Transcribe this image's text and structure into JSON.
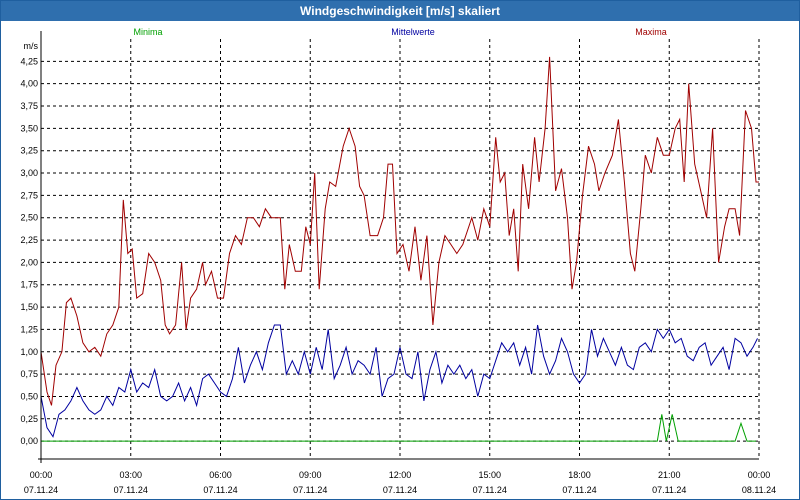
{
  "window": {
    "title": "Windgeschwindigkeit [m/s] skaliert"
  },
  "chart_data": {
    "type": "line",
    "title": "Windgeschwindigkeit [m/s] skaliert",
    "ylabel": "m/s",
    "ylim": [
      -0.2,
      4.5
    ],
    "xlim": [
      0,
      24
    ],
    "yticks": [
      0,
      0.25,
      0.5,
      0.75,
      1,
      1.25,
      1.5,
      1.75,
      2,
      2.25,
      2.5,
      2.75,
      3,
      3.25,
      3.5,
      3.75,
      4,
      4.25
    ],
    "ytick_labels": [
      "0,00",
      "0,25",
      "0,50",
      "0,75",
      "1,00",
      "1,25",
      "1,50",
      "1,75",
      "2,00",
      "2,25",
      "2,50",
      "2,75",
      "3,00",
      "3,25",
      "3,50",
      "3,75",
      "4,00",
      "4,25"
    ],
    "xticks": [
      {
        "h": 0,
        "time": "00:00",
        "date": "07.11.24"
      },
      {
        "h": 3,
        "time": "03:00",
        "date": "07.11.24"
      },
      {
        "h": 6,
        "time": "06:00",
        "date": "07.11.24"
      },
      {
        "h": 9,
        "time": "09:00",
        "date": "07.11.24"
      },
      {
        "h": 12,
        "time": "12:00",
        "date": "07.11.24"
      },
      {
        "h": 15,
        "time": "15:00",
        "date": "07.11.24"
      },
      {
        "h": 18,
        "time": "18:00",
        "date": "07.11.24"
      },
      {
        "h": 21,
        "time": "21:00",
        "date": "07.11.24"
      },
      {
        "h": 24,
        "time": "00:00",
        "date": "08.11.24"
      }
    ],
    "grid": true,
    "legend": "top",
    "series": [
      {
        "name": "Minima",
        "color": "#00a000",
        "values": [
          [
            0,
            0
          ],
          [
            20.6,
            0
          ],
          [
            20.75,
            0.3
          ],
          [
            20.9,
            0
          ],
          [
            21.1,
            0.3
          ],
          [
            21.3,
            0
          ],
          [
            23.2,
            0
          ],
          [
            23.4,
            0.2
          ],
          [
            23.6,
            0
          ],
          [
            23.9,
            0
          ]
        ]
      },
      {
        "name": "Mittelwerte",
        "color": "#0000a0",
        "values": [
          [
            0,
            0.5
          ],
          [
            0.2,
            0.15
          ],
          [
            0.4,
            0.05
          ],
          [
            0.6,
            0.3
          ],
          [
            0.8,
            0.35
          ],
          [
            1,
            0.45
          ],
          [
            1.2,
            0.6
          ],
          [
            1.4,
            0.45
          ],
          [
            1.6,
            0.35
          ],
          [
            1.8,
            0.3
          ],
          [
            2,
            0.35
          ],
          [
            2.2,
            0.5
          ],
          [
            2.4,
            0.4
          ],
          [
            2.6,
            0.6
          ],
          [
            2.8,
            0.55
          ],
          [
            3,
            0.8
          ],
          [
            3.2,
            0.55
          ],
          [
            3.4,
            0.65
          ],
          [
            3.6,
            0.6
          ],
          [
            3.8,
            0.8
          ],
          [
            4,
            0.5
          ],
          [
            4.2,
            0.45
          ],
          [
            4.4,
            0.5
          ],
          [
            4.6,
            0.65
          ],
          [
            4.8,
            0.45
          ],
          [
            5,
            0.6
          ],
          [
            5.2,
            0.4
          ],
          [
            5.4,
            0.7
          ],
          [
            5.6,
            0.75
          ],
          [
            5.8,
            0.65
          ],
          [
            6,
            0.55
          ],
          [
            6.2,
            0.5
          ],
          [
            6.4,
            0.7
          ],
          [
            6.6,
            1.05
          ],
          [
            6.8,
            0.65
          ],
          [
            7,
            0.85
          ],
          [
            7.2,
            1.0
          ],
          [
            7.4,
            0.8
          ],
          [
            7.6,
            1.1
          ],
          [
            7.8,
            1.3
          ],
          [
            8,
            1.3
          ],
          [
            8.2,
            0.75
          ],
          [
            8.4,
            0.9
          ],
          [
            8.6,
            0.75
          ],
          [
            8.8,
            1.0
          ],
          [
            9,
            0.75
          ],
          [
            9.2,
            1.05
          ],
          [
            9.4,
            0.8
          ],
          [
            9.6,
            1.25
          ],
          [
            9.8,
            0.7
          ],
          [
            10,
            0.85
          ],
          [
            10.2,
            1.05
          ],
          [
            10.4,
            0.75
          ],
          [
            10.6,
            0.9
          ],
          [
            10.8,
            0.85
          ],
          [
            11,
            0.75
          ],
          [
            11.2,
            1.05
          ],
          [
            11.4,
            0.5
          ],
          [
            11.6,
            0.7
          ],
          [
            11.8,
            0.75
          ],
          [
            12,
            1.05
          ],
          [
            12.2,
            0.75
          ],
          [
            12.4,
            0.7
          ],
          [
            12.6,
            1.0
          ],
          [
            12.8,
            0.45
          ],
          [
            13,
            0.8
          ],
          [
            13.2,
            1.0
          ],
          [
            13.4,
            0.65
          ],
          [
            13.6,
            0.85
          ],
          [
            13.8,
            0.75
          ],
          [
            14,
            0.85
          ],
          [
            14.2,
            0.7
          ],
          [
            14.4,
            0.8
          ],
          [
            14.6,
            0.5
          ],
          [
            14.8,
            0.75
          ],
          [
            15,
            0.7
          ],
          [
            15.2,
            0.9
          ],
          [
            15.4,
            1.1
          ],
          [
            15.6,
            1.0
          ],
          [
            15.8,
            1.1
          ],
          [
            16,
            0.85
          ],
          [
            16.2,
            1.05
          ],
          [
            16.4,
            0.75
          ],
          [
            16.6,
            1.3
          ],
          [
            16.8,
            0.95
          ],
          [
            17,
            0.75
          ],
          [
            17.2,
            0.9
          ],
          [
            17.4,
            1.15
          ],
          [
            17.6,
            1.0
          ],
          [
            17.8,
            0.75
          ],
          [
            18,
            0.65
          ],
          [
            18.2,
            0.75
          ],
          [
            18.4,
            1.25
          ],
          [
            18.6,
            0.95
          ],
          [
            18.8,
            1.15
          ],
          [
            19,
            1.0
          ],
          [
            19.2,
            0.85
          ],
          [
            19.4,
            1.05
          ],
          [
            19.6,
            0.85
          ],
          [
            19.8,
            0.8
          ],
          [
            20,
            1.05
          ],
          [
            20.2,
            1.1
          ],
          [
            20.4,
            1.0
          ],
          [
            20.6,
            1.25
          ],
          [
            20.8,
            1.15
          ],
          [
            21,
            1.25
          ],
          [
            21.2,
            1.1
          ],
          [
            21.4,
            1.15
          ],
          [
            21.6,
            0.95
          ],
          [
            21.8,
            0.9
          ],
          [
            22,
            1.05
          ],
          [
            22.2,
            1.1
          ],
          [
            22.4,
            0.85
          ],
          [
            22.6,
            0.95
          ],
          [
            22.8,
            1.05
          ],
          [
            23,
            0.8
          ],
          [
            23.2,
            1.15
          ],
          [
            23.4,
            1.1
          ],
          [
            23.6,
            0.95
          ],
          [
            23.8,
            1.05
          ],
          [
            23.95,
            1.15
          ]
        ]
      },
      {
        "name": "Maxima",
        "color": "#a00000",
        "values": [
          [
            0,
            1.0
          ],
          [
            0.2,
            0.55
          ],
          [
            0.35,
            0.4
          ],
          [
            0.5,
            0.85
          ],
          [
            0.7,
            1.0
          ],
          [
            0.85,
            1.55
          ],
          [
            1,
            1.6
          ],
          [
            1.2,
            1.4
          ],
          [
            1.4,
            1.1
          ],
          [
            1.6,
            1.0
          ],
          [
            1.8,
            1.05
          ],
          [
            2,
            0.95
          ],
          [
            2.2,
            1.2
          ],
          [
            2.4,
            1.3
          ],
          [
            2.6,
            1.5
          ],
          [
            2.75,
            2.7
          ],
          [
            2.9,
            2.1
          ],
          [
            3.05,
            2.15
          ],
          [
            3.2,
            1.6
          ],
          [
            3.4,
            1.65
          ],
          [
            3.6,
            2.1
          ],
          [
            3.8,
            2.0
          ],
          [
            4,
            1.8
          ],
          [
            4.15,
            1.3
          ],
          [
            4.3,
            1.2
          ],
          [
            4.5,
            1.3
          ],
          [
            4.7,
            2.0
          ],
          [
            4.85,
            1.25
          ],
          [
            5,
            1.6
          ],
          [
            5.2,
            1.7
          ],
          [
            5.4,
            2.0
          ],
          [
            5.5,
            1.75
          ],
          [
            5.7,
            1.9
          ],
          [
            5.9,
            1.6
          ],
          [
            6.1,
            1.6
          ],
          [
            6.3,
            2.1
          ],
          [
            6.5,
            2.3
          ],
          [
            6.7,
            2.2
          ],
          [
            6.9,
            2.5
          ],
          [
            7.1,
            2.5
          ],
          [
            7.3,
            2.4
          ],
          [
            7.5,
            2.6
          ],
          [
            7.7,
            2.5
          ],
          [
            8,
            2.5
          ],
          [
            8.15,
            1.7
          ],
          [
            8.3,
            2.2
          ],
          [
            8.5,
            1.9
          ],
          [
            8.7,
            1.9
          ],
          [
            8.85,
            2.4
          ],
          [
            9,
            2.2
          ],
          [
            9.15,
            3.0
          ],
          [
            9.3,
            1.7
          ],
          [
            9.5,
            2.6
          ],
          [
            9.65,
            2.9
          ],
          [
            9.85,
            2.85
          ],
          [
            10.1,
            3.3
          ],
          [
            10.3,
            3.5
          ],
          [
            10.5,
            3.3
          ],
          [
            10.65,
            2.85
          ],
          [
            10.8,
            2.75
          ],
          [
            11,
            2.3
          ],
          [
            11.25,
            2.3
          ],
          [
            11.45,
            2.5
          ],
          [
            11.6,
            3.1
          ],
          [
            11.75,
            3.1
          ],
          [
            11.9,
            2.1
          ],
          [
            12.1,
            2.2
          ],
          [
            12.3,
            1.9
          ],
          [
            12.5,
            2.4
          ],
          [
            12.7,
            1.8
          ],
          [
            12.9,
            2.3
          ],
          [
            13.1,
            1.3
          ],
          [
            13.3,
            2.0
          ],
          [
            13.5,
            2.3
          ],
          [
            13.7,
            2.2
          ],
          [
            13.9,
            2.1
          ],
          [
            14.1,
            2.2
          ],
          [
            14.4,
            2.5
          ],
          [
            14.6,
            2.25
          ],
          [
            14.8,
            2.6
          ],
          [
            15,
            2.4
          ],
          [
            15.2,
            3.4
          ],
          [
            15.35,
            2.9
          ],
          [
            15.5,
            3.0
          ],
          [
            15.65,
            2.3
          ],
          [
            15.8,
            2.6
          ],
          [
            15.95,
            1.9
          ],
          [
            16.1,
            3.1
          ],
          [
            16.3,
            2.6
          ],
          [
            16.5,
            3.4
          ],
          [
            16.65,
            2.9
          ],
          [
            16.85,
            3.5
          ],
          [
            17,
            4.3
          ],
          [
            17.2,
            2.8
          ],
          [
            17.4,
            3.05
          ],
          [
            17.6,
            2.5
          ],
          [
            17.75,
            1.7
          ],
          [
            17.9,
            2.0
          ],
          [
            18.1,
            2.75
          ],
          [
            18.3,
            3.3
          ],
          [
            18.5,
            3.1
          ],
          [
            18.65,
            2.8
          ],
          [
            18.85,
            3.0
          ],
          [
            19.1,
            3.2
          ],
          [
            19.3,
            3.6
          ],
          [
            19.5,
            2.9
          ],
          [
            19.7,
            2.1
          ],
          [
            19.85,
            1.9
          ],
          [
            20.05,
            2.6
          ],
          [
            20.2,
            3.2
          ],
          [
            20.4,
            3.0
          ],
          [
            20.6,
            3.4
          ],
          [
            20.8,
            3.2
          ],
          [
            21,
            3.2
          ],
          [
            21.2,
            3.5
          ],
          [
            21.35,
            3.6
          ],
          [
            21.5,
            2.9
          ],
          [
            21.65,
            4.0
          ],
          [
            21.85,
            3.1
          ],
          [
            22.05,
            2.8
          ],
          [
            22.25,
            2.5
          ],
          [
            22.45,
            3.5
          ],
          [
            22.65,
            2.0
          ],
          [
            22.85,
            2.4
          ],
          [
            23,
            2.6
          ],
          [
            23.2,
            2.6
          ],
          [
            23.35,
            2.3
          ],
          [
            23.55,
            3.7
          ],
          [
            23.75,
            3.5
          ],
          [
            23.9,
            2.9
          ],
          [
            24.05,
            2.9
          ],
          [
            24.25,
            2.4
          ],
          [
            24.45,
            3.0
          ]
        ]
      }
    ]
  }
}
